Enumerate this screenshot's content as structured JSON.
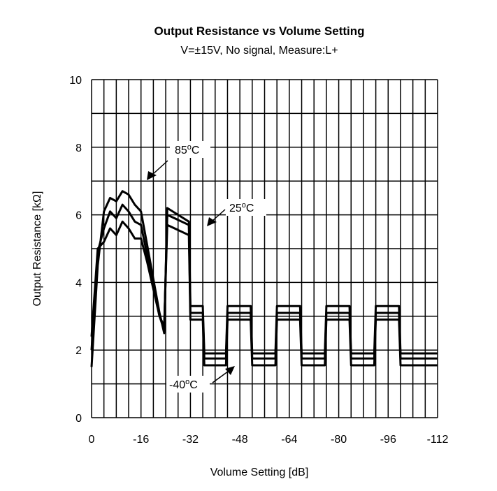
{
  "chart_data": {
    "type": "line",
    "title": "Output Resistance vs Volume Setting",
    "subtitle": "V=±15V, No signal, Measure:L+",
    "xlabel": "Volume Setting [dB]",
    "ylabel": "Output Resistance [kΩ]",
    "xlim": [
      0,
      -112
    ],
    "ylim": [
      0,
      10
    ],
    "x_ticks": [
      0,
      -16,
      -32,
      -48,
      -64,
      -80,
      -96,
      -112
    ],
    "x_tick_labels": [
      "0",
      "-16",
      "-32",
      "-48",
      "-64",
      "-80",
      "-96",
      "-112"
    ],
    "y_ticks": [
      0,
      2,
      4,
      6,
      8,
      10
    ],
    "y_tick_labels": [
      "0",
      "2",
      "4",
      "6",
      "8",
      "10"
    ],
    "grid": true,
    "series": [
      {
        "name": "85°C",
        "points": [
          [
            0,
            1.5
          ],
          [
            -2,
            4.5
          ],
          [
            -4,
            6.1
          ],
          [
            -6,
            6.5
          ],
          [
            -8,
            6.4
          ],
          [
            -10,
            6.7
          ],
          [
            -12,
            6.6
          ],
          [
            -14,
            6.3
          ],
          [
            -16,
            6.1
          ],
          [
            -18,
            5.1
          ],
          [
            -20,
            4.1
          ],
          [
            -22,
            3.1
          ],
          [
            -23.5,
            2.5
          ],
          [
            -24.5,
            6.2
          ],
          [
            -31.5,
            5.8
          ],
          [
            -32,
            3.3
          ],
          [
            -36,
            3.3
          ],
          [
            -36.5,
            1.9
          ],
          [
            -43.5,
            1.9
          ],
          [
            -44,
            3.3
          ],
          [
            -51.5,
            3.3
          ],
          [
            -52,
            1.9
          ],
          [
            -59.5,
            1.9
          ],
          [
            -60,
            3.3
          ],
          [
            -67.5,
            3.3
          ],
          [
            -68,
            1.9
          ],
          [
            -75.5,
            1.9
          ],
          [
            -76,
            3.3
          ],
          [
            -83.5,
            3.3
          ],
          [
            -84,
            1.9
          ],
          [
            -91.5,
            1.9
          ],
          [
            -92,
            3.3
          ],
          [
            -99.5,
            3.3
          ],
          [
            -100,
            1.9
          ],
          [
            -112,
            1.9
          ]
        ]
      },
      {
        "name": "25°C",
        "points": [
          [
            0,
            2.0
          ],
          [
            -2,
            4.9
          ],
          [
            -4,
            5.6
          ],
          [
            -6,
            6.1
          ],
          [
            -8,
            5.9
          ],
          [
            -10,
            6.3
          ],
          [
            -12,
            6.1
          ],
          [
            -14,
            5.8
          ],
          [
            -16,
            5.7
          ],
          [
            -18,
            4.8
          ],
          [
            -20,
            3.9
          ],
          [
            -22,
            3.0
          ],
          [
            -23.5,
            2.6
          ],
          [
            -24.5,
            6.0
          ],
          [
            -31.5,
            5.7
          ],
          [
            -32,
            3.1
          ],
          [
            -36,
            3.1
          ],
          [
            -36.5,
            1.75
          ],
          [
            -43.5,
            1.75
          ],
          [
            -44,
            3.1
          ],
          [
            -51.5,
            3.1
          ],
          [
            -52,
            1.75
          ],
          [
            -59.5,
            1.75
          ],
          [
            -60,
            3.1
          ],
          [
            -67.5,
            3.1
          ],
          [
            -68,
            1.75
          ],
          [
            -75.5,
            1.75
          ],
          [
            -76,
            3.1
          ],
          [
            -83.5,
            3.1
          ],
          [
            -84,
            1.75
          ],
          [
            -91.5,
            1.75
          ],
          [
            -92,
            3.1
          ],
          [
            -99.5,
            3.1
          ],
          [
            -100,
            1.75
          ],
          [
            -112,
            1.75
          ]
        ]
      },
      {
        "name": "-40°C",
        "points": [
          [
            0,
            2.4
          ],
          [
            -2,
            5.0
          ],
          [
            -4,
            5.2
          ],
          [
            -6,
            5.6
          ],
          [
            -8,
            5.4
          ],
          [
            -10,
            5.8
          ],
          [
            -12,
            5.6
          ],
          [
            -14,
            5.3
          ],
          [
            -16,
            5.3
          ],
          [
            -18,
            4.6
          ],
          [
            -20,
            3.8
          ],
          [
            -22,
            3.0
          ],
          [
            -23.5,
            2.7
          ],
          [
            -24.5,
            5.7
          ],
          [
            -31.5,
            5.4
          ],
          [
            -32,
            2.9
          ],
          [
            -36,
            2.9
          ],
          [
            -36.5,
            1.55
          ],
          [
            -43.5,
            1.55
          ],
          [
            -44,
            2.9
          ],
          [
            -51.5,
            2.9
          ],
          [
            -52,
            1.55
          ],
          [
            -59.5,
            1.55
          ],
          [
            -60,
            2.9
          ],
          [
            -67.5,
            2.9
          ],
          [
            -68,
            1.55
          ],
          [
            -75.5,
            1.55
          ],
          [
            -76,
            2.9
          ],
          [
            -83.5,
            2.9
          ],
          [
            -84,
            1.55
          ],
          [
            -91.5,
            1.55
          ],
          [
            -92,
            2.9
          ],
          [
            -99.5,
            2.9
          ],
          [
            -100,
            1.55
          ],
          [
            -112,
            1.55
          ]
        ]
      }
    ],
    "annotations": [
      {
        "label": "85",
        "unit": "C",
        "series": "85°C"
      },
      {
        "label": "25",
        "unit": "C",
        "series": "25°C"
      },
      {
        "label": "-40",
        "unit": "C",
        "series": "-40°C"
      }
    ]
  }
}
